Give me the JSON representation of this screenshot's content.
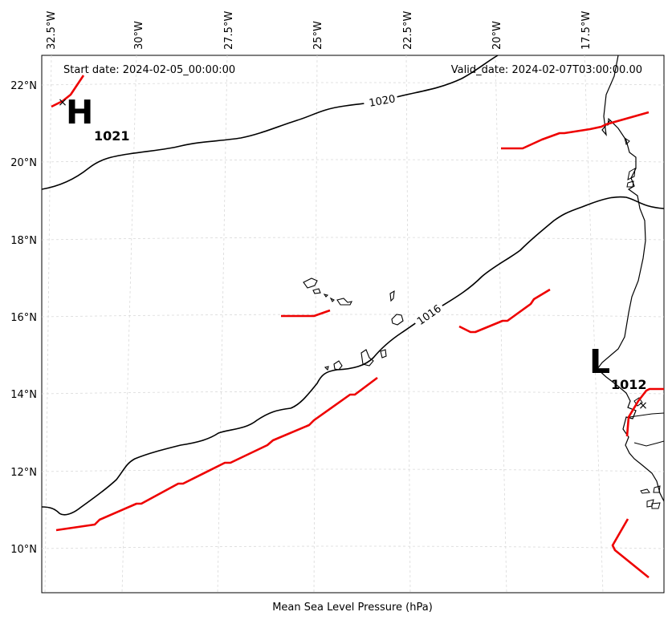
{
  "map": {
    "start_date": "Start date: 2024-02-05_00:00:00",
    "valid_date": "Valid_date: 2024-02-07T03:00:00.00",
    "xlabel": "Mean Sea Level Pressure (hPa)",
    "lon_labels": [
      "32.5°W",
      "30°W",
      "27.5°W",
      "25°W",
      "22.5°W",
      "20°W",
      "17.5°W"
    ],
    "lat_labels": [
      "22°N",
      "20°N",
      "18°N",
      "16°N",
      "14°N",
      "12°N",
      "10°N"
    ],
    "isobar_labels": [
      "1020",
      "1016"
    ],
    "high": {
      "symbol": "H",
      "value": "1021"
    },
    "low": {
      "symbol": "L",
      "value": "1012"
    },
    "colors": {
      "isobar": "#000000",
      "front": "#ee0000",
      "grid": "#d9d9d9",
      "coast": "#000000"
    }
  }
}
